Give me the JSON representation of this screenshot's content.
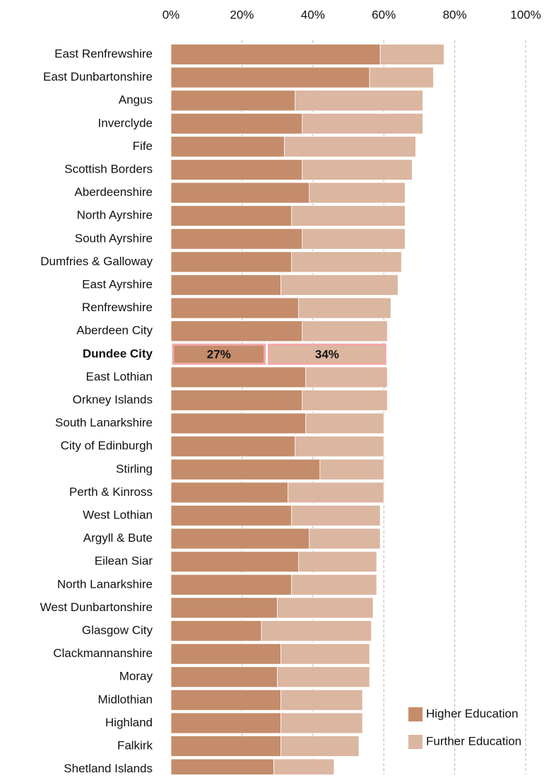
{
  "chart_data": {
    "type": "stacked_barh",
    "categories": [
      "East Renfrewshire",
      "East Dunbartonshire",
      "Angus",
      "Inverclyde",
      "Fife",
      "Scottish Borders",
      "Aberdeenshire",
      "North Ayrshire",
      "South Ayrshire",
      "Dumfries & Galloway",
      "East Ayrshire",
      "Renfrewshire",
      "Aberdeen City",
      "Dundee City",
      "East Lothian",
      "Orkney Islands",
      "South Lanarkshire",
      "City of Edinburgh",
      "Stirling",
      "Perth & Kinross",
      "West Lothian",
      "Argyll & Bute",
      "Eilean Siar",
      "North Lanarkshire",
      "West Dunbartonshire",
      "Glasgow City",
      "Clackmannanshire",
      "Moray",
      "Midlothian",
      "Highland",
      "Falkirk",
      "Shetland Islands"
    ],
    "series": [
      {
        "name": "Higher Education",
        "color": "#c48c6a",
        "values": [
          59,
          56,
          35,
          37,
          32,
          37,
          39,
          34,
          37,
          34,
          31,
          36,
          37,
          27,
          38,
          37,
          38,
          35,
          42,
          33,
          34,
          39,
          36,
          34,
          30,
          25.5,
          31,
          30,
          31,
          31,
          31,
          29
        ],
        "value_labels": [
          null,
          null,
          null,
          null,
          null,
          null,
          null,
          null,
          null,
          null,
          null,
          null,
          null,
          "27%",
          null,
          null,
          null,
          null,
          null,
          null,
          null,
          null,
          null,
          null,
          null,
          null,
          null,
          null,
          null,
          null,
          null,
          null
        ]
      },
      {
        "name": "Further Education",
        "color": "#dbb6a0",
        "values": [
          18,
          18,
          36,
          34,
          37,
          31,
          27,
          32,
          29,
          31,
          33,
          26,
          24,
          34,
          23,
          24,
          22,
          25,
          18,
          27,
          25,
          20,
          22,
          24,
          27,
          31,
          25,
          26,
          23,
          23,
          22,
          17
        ],
        "value_labels": [
          null,
          null,
          null,
          null,
          null,
          null,
          null,
          null,
          null,
          null,
          null,
          null,
          null,
          "34%",
          null,
          null,
          null,
          null,
          null,
          null,
          null,
          null,
          null,
          null,
          null,
          null,
          null,
          null,
          null,
          null,
          null,
          null
        ]
      }
    ],
    "xlim": [
      0,
      100
    ],
    "xticks": [
      {
        "value": 0,
        "label": "0%"
      },
      {
        "value": 20,
        "label": "20%"
      },
      {
        "value": 40,
        "label": "40%"
      },
      {
        "value": 60,
        "label": "60%"
      },
      {
        "value": 80,
        "label": "80%"
      },
      {
        "value": 100,
        "label": "100%"
      }
    ],
    "grid": true,
    "legend": "lower right"
  }
}
